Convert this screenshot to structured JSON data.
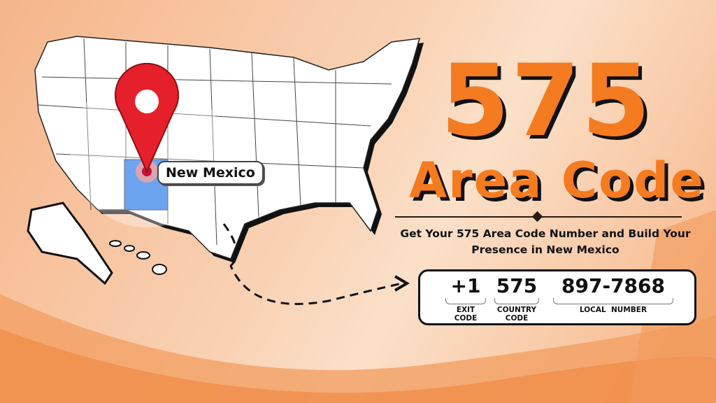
{
  "headline": {
    "number": "575",
    "title": "Area Code"
  },
  "subtitle": "Get Your 575 Area Code Number and Build Your Presence in New Mexico",
  "map": {
    "state_label": "New Mexico",
    "highlight_color": "#1e73e8",
    "pin_color": "#e5202a",
    "icons": [
      "map-pin-icon",
      "dashed-arrow-icon"
    ]
  },
  "phone": {
    "parts": [
      {
        "value": "+1",
        "label": "EXIT CODE"
      },
      {
        "value": "575",
        "label": "COUNTRY CODE"
      },
      {
        "value": "897-7868",
        "label": "LOCAL  NUMBER"
      }
    ]
  },
  "colors": {
    "accent": "#f47b20",
    "background": "#f9d2b4"
  }
}
